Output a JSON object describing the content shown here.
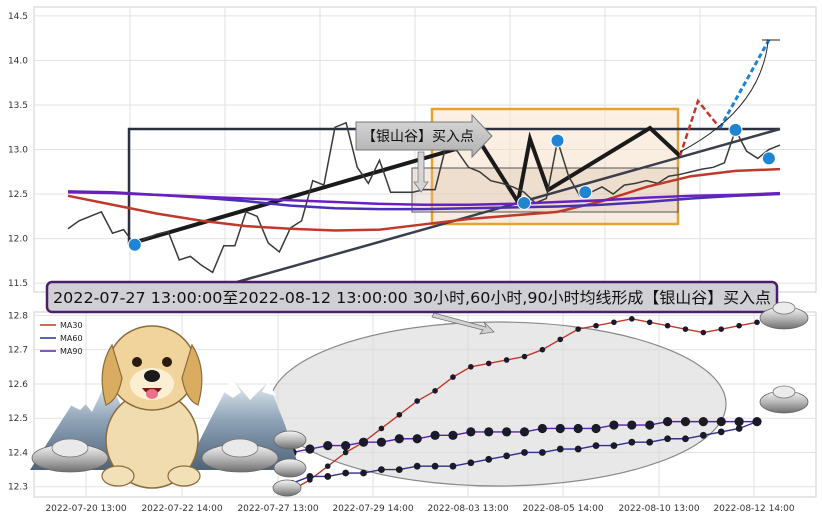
{
  "chart_data": [
    {
      "panel": "price",
      "type": "line",
      "title": "",
      "ylim": [
        11.4,
        14.6
      ],
      "y_ticks": [
        "11.5",
        "12.0",
        "12.5",
        "13.0",
        "13.5",
        "14.0",
        "14.5"
      ],
      "grid": true,
      "series": [
        {
          "color": "#3a3a3a",
          "x": [
            0,
            1,
            2,
            3,
            4,
            5,
            6,
            7,
            8,
            9,
            10,
            11,
            12,
            13,
            14,
            15,
            16,
            17,
            18,
            19,
            20,
            21,
            22,
            23,
            24,
            25,
            26,
            27,
            28,
            29,
            30,
            31,
            32,
            33,
            34,
            35,
            36,
            37,
            38,
            39,
            40,
            41,
            42,
            43,
            44,
            45,
            46,
            47,
            48,
            49,
            50,
            51,
            52,
            53,
            54,
            55,
            56,
            57,
            58,
            59,
            60,
            61,
            62,
            63,
            64
          ],
          "values": [
            12.11,
            12.2,
            12.25,
            12.3,
            12.06,
            12.1,
            11.93,
            12.0,
            12.05,
            12.08,
            11.76,
            11.8,
            11.7,
            11.62,
            11.92,
            11.92,
            12.3,
            12.25,
            11.95,
            11.85,
            12.12,
            12.2,
            12.65,
            12.6,
            13.25,
            13.3,
            12.8,
            12.62,
            12.88,
            12.52,
            12.52,
            12.52,
            12.55,
            12.55,
            13.05,
            12.98,
            12.8,
            12.75,
            12.65,
            12.62,
            12.58,
            12.52,
            12.4,
            12.45,
            13.1,
            12.7,
            12.48,
            12.52,
            12.58,
            12.5,
            12.6,
            12.62,
            12.65,
            12.62,
            12.7,
            12.72,
            12.75,
            12.78,
            12.8,
            12.85,
            13.22,
            12.98,
            12.9,
            13.0,
            13.05
          ]
        },
        {
          "color": "#c0392b",
          "x": [
            0,
            4,
            8,
            12,
            16,
            20,
            24,
            28,
            32,
            36,
            40,
            44,
            48,
            52,
            56,
            60,
            64
          ],
          "values": [
            12.48,
            12.38,
            12.28,
            12.2,
            12.14,
            12.11,
            12.09,
            12.1,
            12.16,
            12.22,
            12.26,
            12.3,
            12.42,
            12.58,
            12.7,
            12.76,
            12.78
          ]
        },
        {
          "color": "#4b2fb5",
          "x": [
            0,
            4,
            8,
            12,
            16,
            20,
            24,
            28,
            32,
            36,
            40,
            44,
            48,
            52,
            56,
            60,
            64
          ],
          "values": [
            12.53,
            12.52,
            12.49,
            12.46,
            12.42,
            12.37,
            12.34,
            12.33,
            12.33,
            12.34,
            12.35,
            12.36,
            12.38,
            12.41,
            12.45,
            12.48,
            12.5
          ]
        },
        {
          "color": "#6a1fc2",
          "x": [
            0,
            4,
            8,
            12,
            16,
            20,
            24,
            28,
            32,
            36,
            40,
            44,
            48,
            52,
            56,
            60,
            64
          ],
          "values": [
            12.52,
            12.51,
            12.49,
            12.47,
            12.45,
            12.43,
            12.41,
            12.39,
            12.38,
            12.38,
            12.39,
            12.41,
            12.43,
            12.46,
            12.48,
            12.49,
            12.51
          ]
        }
      ],
      "markers": [
        {
          "x": 6,
          "y": 11.93
        },
        {
          "x": 41,
          "y": 12.4
        },
        {
          "x": 44,
          "y": 13.1
        },
        {
          "x": 46.5,
          "y": 12.52
        },
        {
          "x": 60,
          "y": 13.22
        },
        {
          "x": 63,
          "y": 12.9
        }
      ],
      "annotation": "【银山谷】买入点"
    },
    {
      "panel": "ma",
      "type": "line",
      "ylim": [
        12.27,
        12.81
      ],
      "y_ticks": [
        "12.3",
        "12.4",
        "12.5",
        "12.6",
        "12.7",
        "12.8"
      ],
      "x_ticks": [
        "2022-07-20 13:00",
        "2022-07-22 14:00",
        "2022-07-27 13:00",
        "2022-07-29 14:00",
        "2022-08-03 13:00",
        "2022-08-05 14:00",
        "2022-08-10 13:00",
        "2022-08-12 14:00"
      ],
      "grid": true,
      "legend_placement": "top-left",
      "series": [
        {
          "name": "MA30",
          "color": "#c0392b",
          "x": [
            0,
            1,
            2,
            3,
            4,
            5,
            6,
            7,
            8,
            9,
            10,
            11,
            12,
            13,
            14,
            15,
            16,
            17,
            18,
            19,
            20,
            21,
            22,
            23,
            24,
            25,
            26
          ],
          "values": [
            12.29,
            12.32,
            12.36,
            12.4,
            12.43,
            12.47,
            12.51,
            12.55,
            12.58,
            12.62,
            12.65,
            12.66,
            12.67,
            12.68,
            12.7,
            12.73,
            12.76,
            12.77,
            12.78,
            12.79,
            12.78,
            12.77,
            12.76,
            12.75,
            12.76,
            12.77,
            12.78
          ]
        },
        {
          "name": "MA60",
          "color": "#2f2f8f",
          "x": [
            0,
            1,
            2,
            3,
            4,
            5,
            6,
            7,
            8,
            9,
            10,
            11,
            12,
            13,
            14,
            15,
            16,
            17,
            18,
            19,
            20,
            21,
            22,
            23,
            24,
            25,
            26
          ],
          "values": [
            12.31,
            12.33,
            12.33,
            12.34,
            12.34,
            12.35,
            12.35,
            12.36,
            12.36,
            12.36,
            12.37,
            12.38,
            12.39,
            12.4,
            12.4,
            12.41,
            12.41,
            12.42,
            12.42,
            12.43,
            12.43,
            12.44,
            12.44,
            12.45,
            12.46,
            12.47,
            12.49
          ]
        },
        {
          "name": "MA90",
          "color": "#5b1fb0",
          "x": [
            0,
            1,
            2,
            3,
            4,
            5,
            6,
            7,
            8,
            9,
            10,
            11,
            12,
            13,
            14,
            15,
            16,
            17,
            18,
            19,
            20,
            21,
            22,
            23,
            24,
            25,
            26
          ],
          "values": [
            12.4,
            12.41,
            12.42,
            12.42,
            12.43,
            12.43,
            12.44,
            12.44,
            12.45,
            12.45,
            12.46,
            12.46,
            12.46,
            12.46,
            12.47,
            12.47,
            12.47,
            12.47,
            12.48,
            12.48,
            12.48,
            12.49,
            12.49,
            12.49,
            12.49,
            12.49,
            12.49
          ]
        }
      ]
    }
  ],
  "banner": {
    "text": "2022-07-27 13:00:00至2022-08-12 13:00:00 30小时,60小时,90小时均线形成【银山谷】买入点"
  },
  "colors": {
    "highlight_box": "#e8a030",
    "banner_border": "#4a1f6a",
    "frame_line": "#2b3040",
    "marker": "#1f84d4",
    "projection_red": "#c0392b",
    "projection_blue": "#1f84d4"
  },
  "decorations": [
    "dog-mascot",
    "snow-mountains",
    "silver-ingots"
  ]
}
